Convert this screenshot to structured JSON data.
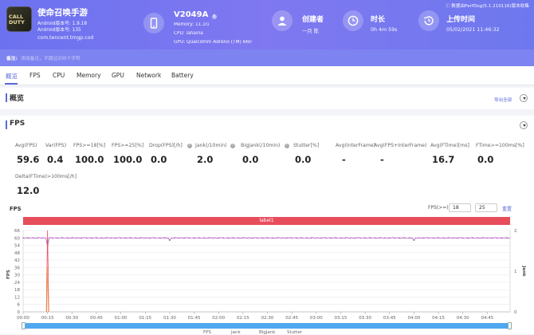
{
  "header": {
    "game": {
      "icon_text": "CALL\nDUTY",
      "title": "使命召唤手游",
      "android_version": "Android版本号: 1.9.18",
      "android_code": "Android版本号: 135",
      "package": "com.tencent.tmgp.cod"
    },
    "device": {
      "name": "V2049A",
      "memory": "Memory: 11.1G",
      "cpu": "CPU: lahaina",
      "gpu": "GPU: Qualcomm Adreno (TM) 660"
    },
    "creator": {
      "label": "创建者",
      "value": "一月 陈"
    },
    "duration": {
      "label": "时长",
      "value": "0h 4m 59s"
    },
    "upload": {
      "label": "上传时间",
      "value": "05/02/2021 11:46:32"
    },
    "version_note": "ⓘ 数据由PerfDog(5.1.210116)版本收集"
  },
  "remark": {
    "label": "备注:",
    "placeholder": "添加备注，不超过200个字符"
  },
  "tabs": [
    "概览",
    "FPS",
    "CPU",
    "Memory",
    "GPU",
    "Network",
    "Battery"
  ],
  "overview": {
    "title": "概览",
    "export": "导出全部"
  },
  "fps_section": {
    "title": "FPS",
    "metrics": [
      {
        "label": "Avg(FPS)",
        "value": "59.6"
      },
      {
        "label": "Var(FPS)",
        "value": "0.4"
      },
      {
        "label": "FPS>=18[%]",
        "value": "100.0"
      },
      {
        "label": "FPS>=25[%]",
        "value": "100.0"
      },
      {
        "label": "Drop(FPS)[/h]",
        "value": "0.0"
      },
      {
        "label": "Jank(/10min)",
        "value": "2.0"
      },
      {
        "label": "BigJank(/10min)",
        "value": "0.0"
      },
      {
        "label": "Stutter[%]",
        "value": "0.0"
      },
      {
        "label": "Avg(InterFrame)",
        "value": "-"
      },
      {
        "label": "Avg(FPS+InterFrame)",
        "value": "-"
      },
      {
        "label": "Avg(FTime)[ms]",
        "value": "16.7"
      },
      {
        "label": "FTime>=100ms[%]",
        "value": "0.0"
      },
      {
        "label": "Delta(FTime)>100ms[/h]",
        "value": "12.0"
      }
    ]
  },
  "chart_controls": {
    "title": "FPS",
    "threshold_label": "FPS(>=)",
    "threshold_1": "18",
    "threshold_2": "25",
    "reset": "重置"
  },
  "chart_data": {
    "type": "line",
    "label_bar": "label1",
    "ylabel": "FPS",
    "y2label": "Jank",
    "y_ticks": [
      0,
      6,
      12,
      18,
      24,
      30,
      36,
      42,
      48,
      54,
      60,
      66
    ],
    "y2_ticks": [
      0,
      1,
      2
    ],
    "x_ticks": [
      "00:00",
      "00:15",
      "00:30",
      "00:45",
      "01:00",
      "01:15",
      "01:30",
      "01:45",
      "02:00",
      "02:15",
      "02:30",
      "02:45",
      "03:00",
      "03:15",
      "03:30",
      "03:45",
      "04:00",
      "04:15",
      "04:30",
      "04:45"
    ],
    "x_range_seconds": [
      0,
      299
    ],
    "series": [
      {
        "name": "FPS",
        "color": "#a23fb2",
        "baseline": 60,
        "dips": [
          {
            "t": 15,
            "v": 53
          },
          {
            "t": 90,
            "v": 58
          },
          {
            "t": 240,
            "v": 58
          }
        ]
      },
      {
        "name": "Jank",
        "color": "#e84d5b",
        "spikes": [
          {
            "t": 15,
            "v": 2
          }
        ]
      },
      {
        "name": "BigJank",
        "color": "#f0a64a"
      },
      {
        "name": "Stutter",
        "color": "#4fa8f0"
      }
    ],
    "legend_placement": "bottom"
  },
  "colors": {
    "accent": "#5b6bd9",
    "header": "#7078ef",
    "label_bar": "#e84d5b",
    "scroll": "#4fa8f0"
  }
}
